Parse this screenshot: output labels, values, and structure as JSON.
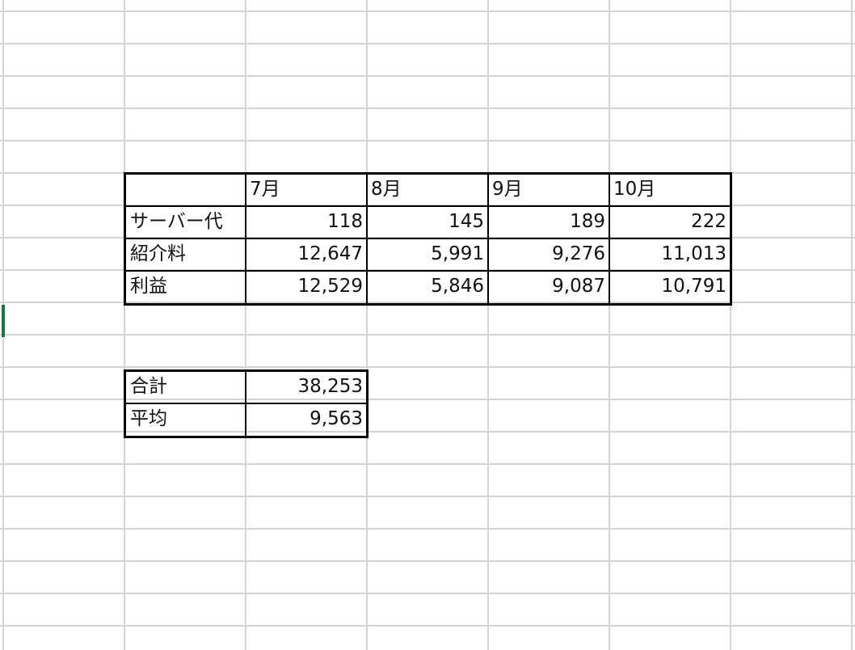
{
  "main_table": {
    "corner": "",
    "headers": [
      "7月",
      "8月",
      "9月",
      "10月"
    ],
    "rows": [
      {
        "label": "サーバー代",
        "values": [
          "118",
          "145",
          "189",
          "222"
        ]
      },
      {
        "label": "紹介料",
        "values": [
          "12,647",
          "5,991",
          "9,276",
          "11,013"
        ]
      },
      {
        "label": "利益",
        "values": [
          "12,529",
          "5,846",
          "9,087",
          "10,791"
        ]
      }
    ]
  },
  "summary_table": {
    "rows": [
      {
        "label": "合計",
        "value": "38,253"
      },
      {
        "label": "平均",
        "value": "9,563"
      }
    ]
  },
  "colors": {
    "gridline": "#d4d4d4",
    "border": "#000000",
    "selection_accent": "#217346"
  }
}
